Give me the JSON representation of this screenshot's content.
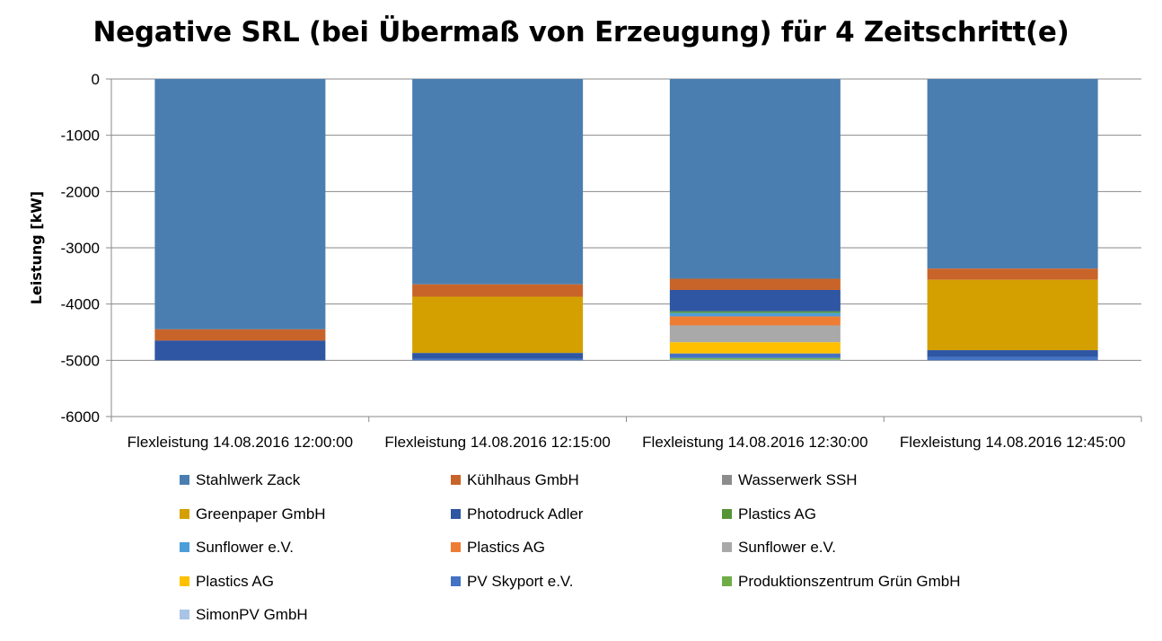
{
  "chart_data": {
    "type": "bar",
    "stacked": true,
    "title": "Negative SRL (bei Übermaß von Erzeugung) für 4 Zeitschritt(e)",
    "ylabel": "Leistung [kW]",
    "xlabel": "",
    "ylim": [
      -6000,
      0
    ],
    "yticks": [
      0,
      -1000,
      -2000,
      -3000,
      -4000,
      -5000,
      -6000
    ],
    "grid": true,
    "legend_position": "bottom",
    "categories": [
      "Flexleistung 14.08.2016 12:00:00",
      "Flexleistung 14.08.2016 12:15:00",
      "Flexleistung 14.08.2016 12:30:00",
      "Flexleistung 14.08.2016 12:45:00"
    ],
    "series": [
      {
        "name": "Stahlwerk Zack",
        "color": "#4A7EB0",
        "values": [
          -4450,
          -3650,
          -3550,
          -3370
        ]
      },
      {
        "name": "Kühlhaus GmbH",
        "color": "#C8642A",
        "values": [
          -200,
          -220,
          -200,
          -200
        ]
      },
      {
        "name": "Wasserwerk SSH",
        "color": "#8C8C8C",
        "values": [
          0,
          0,
          0,
          0
        ]
      },
      {
        "name": "Greenpaper GmbH",
        "color": "#D4A000",
        "values": [
          0,
          -1000,
          0,
          -1250
        ]
      },
      {
        "name": "Photodruck Adler",
        "color": "#2E56A2",
        "values": [
          -350,
          -100,
          -380,
          -120
        ]
      },
      {
        "name": "Plastics AG",
        "color": "#559437",
        "values": [
          0,
          0,
          -30,
          0
        ]
      },
      {
        "name": "Sunflower e.V.",
        "color": "#4C9ED9",
        "values": [
          0,
          0,
          -60,
          0
        ]
      },
      {
        "name": "Plastics AG",
        "color": "#EE7D34",
        "values": [
          0,
          0,
          -160,
          0
        ]
      },
      {
        "name": "Sunflower e.V.",
        "color": "#A9A9A9",
        "values": [
          0,
          0,
          -300,
          0
        ]
      },
      {
        "name": "Plastics AG",
        "color": "#FFC000",
        "values": [
          0,
          0,
          -200,
          0
        ]
      },
      {
        "name": "PV Skyport e.V.",
        "color": "#4472C4",
        "values": [
          0,
          -30,
          -80,
          -60
        ]
      },
      {
        "name": "Produktionszentrum Grün GmbH",
        "color": "#70AD47",
        "values": [
          0,
          0,
          -30,
          0
        ]
      },
      {
        "name": "SimonPV GmbH",
        "color": "#A9C4E6",
        "values": [
          0,
          0,
          -10,
          0
        ]
      }
    ]
  }
}
